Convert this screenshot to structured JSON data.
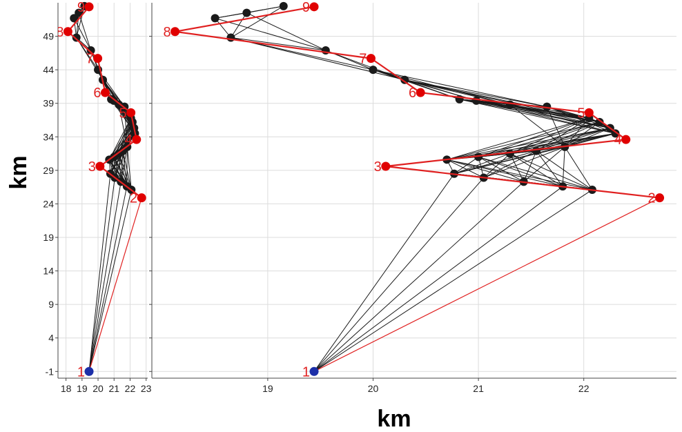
{
  "chart_data": {
    "type": "line",
    "xlabel": "km",
    "ylabel": "km",
    "grid": true,
    "colors": {
      "route": "#e02020",
      "links": "#1a1a1a",
      "nodes": "#1a1a1a",
      "waypoints": "#e00000",
      "start": "#1c2fa8",
      "grid": "#dcdcdc"
    },
    "y_ticks": [
      "-1",
      "4",
      "9",
      "14",
      "19",
      "24",
      "29",
      "34",
      "39",
      "44",
      "49"
    ],
    "panels": [
      {
        "id": "left",
        "xlim": [
          17.5,
          23.1
        ],
        "ylim": [
          -2,
          54
        ],
        "x_ticks": [
          "18",
          "19",
          "20",
          "21",
          "22",
          "23"
        ],
        "show_y_ticks": true
      },
      {
        "id": "right",
        "xlim": [
          17.9,
          22.88
        ],
        "ylim": [
          -2,
          54
        ],
        "x_ticks": [
          "19",
          "20",
          "21",
          "22"
        ],
        "show_y_ticks": false
      }
    ],
    "waypoints": [
      {
        "label": "1",
        "x": 19.44,
        "y": -1.0
      },
      {
        "label": "2",
        "x": 22.72,
        "y": 24.9
      },
      {
        "label": "3",
        "x": 20.12,
        "y": 29.6
      },
      {
        "label": "4",
        "x": 22.4,
        "y": 33.6
      },
      {
        "label": "5",
        "x": 22.05,
        "y": 37.6
      },
      {
        "label": "6",
        "x": 20.45,
        "y": 40.6
      },
      {
        "label": "7",
        "x": 19.98,
        "y": 45.7
      },
      {
        "label": "8",
        "x": 18.12,
        "y": 49.7
      },
      {
        "label": "9",
        "x": 19.44,
        "y": 53.4
      }
    ],
    "nodes": [
      {
        "x": 22.08,
        "y": 26.1
      },
      {
        "x": 21.8,
        "y": 26.6
      },
      {
        "x": 21.43,
        "y": 27.3
      },
      {
        "x": 21.05,
        "y": 27.9
      },
      {
        "x": 20.77,
        "y": 28.5
      },
      {
        "x": 20.7,
        "y": 30.6
      },
      {
        "x": 21.0,
        "y": 31.0
      },
      {
        "x": 21.3,
        "y": 31.5
      },
      {
        "x": 21.55,
        "y": 31.9
      },
      {
        "x": 21.82,
        "y": 32.5
      },
      {
        "x": 22.3,
        "y": 34.5
      },
      {
        "x": 22.25,
        "y": 35.3
      },
      {
        "x": 22.15,
        "y": 36.2
      },
      {
        "x": 22.05,
        "y": 36.8
      },
      {
        "x": 21.65,
        "y": 38.5
      },
      {
        "x": 21.3,
        "y": 38.8
      },
      {
        "x": 20.98,
        "y": 39.4
      },
      {
        "x": 20.82,
        "y": 39.6
      },
      {
        "x": 20.3,
        "y": 42.5
      },
      {
        "x": 20.0,
        "y": 44.0
      },
      {
        "x": 19.55,
        "y": 46.9
      },
      {
        "x": 18.65,
        "y": 48.8
      },
      {
        "x": 18.5,
        "y": 51.7
      },
      {
        "x": 18.8,
        "y": 52.5
      },
      {
        "x": 19.15,
        "y": 53.5
      }
    ],
    "route_order": [
      "1",
      "2",
      "3",
      "4",
      "5",
      "6",
      "7",
      "8",
      "9"
    ]
  }
}
